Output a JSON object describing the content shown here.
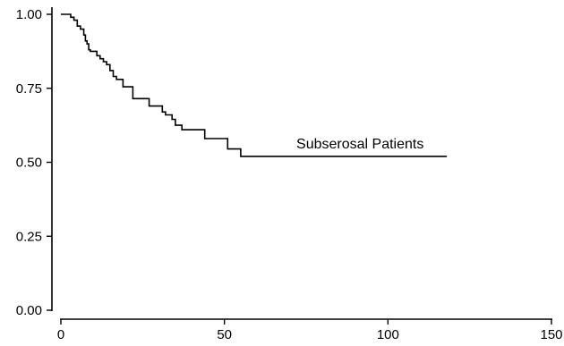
{
  "chart_data": {
    "type": "line",
    "step": true,
    "title": "",
    "xlabel": "",
    "ylabel": "",
    "xlim": [
      0,
      150
    ],
    "ylim": [
      0,
      1
    ],
    "x_ticks": [
      0,
      50,
      100,
      150
    ],
    "x_tick_labels": [
      "0",
      "50",
      "100",
      "150"
    ],
    "y_ticks": [
      0,
      0.25,
      0.5,
      0.75,
      1.0
    ],
    "y_tick_labels": [
      "0.00",
      "0.25",
      "0.50",
      "0.75",
      "1.00"
    ],
    "grid": false,
    "series": [
      {
        "name": "Subserosal Patients",
        "x": [
          0,
          3,
          4,
          5,
          6,
          7,
          7.5,
          8,
          8.5,
          9,
          11,
          12,
          13,
          14,
          15,
          16,
          17,
          19,
          22,
          27,
          31,
          32,
          34,
          35,
          37,
          44,
          51,
          55,
          118
        ],
        "y": [
          1.0,
          0.99,
          0.98,
          0.96,
          0.95,
          0.93,
          0.91,
          0.9,
          0.88,
          0.875,
          0.86,
          0.85,
          0.84,
          0.83,
          0.81,
          0.79,
          0.78,
          0.755,
          0.715,
          0.69,
          0.67,
          0.66,
          0.645,
          0.625,
          0.61,
          0.58,
          0.545,
          0.52,
          0.52
        ]
      }
    ],
    "annotations": [
      {
        "text": "Subserosal Patients",
        "x": 72,
        "y": 0.52
      }
    ]
  }
}
